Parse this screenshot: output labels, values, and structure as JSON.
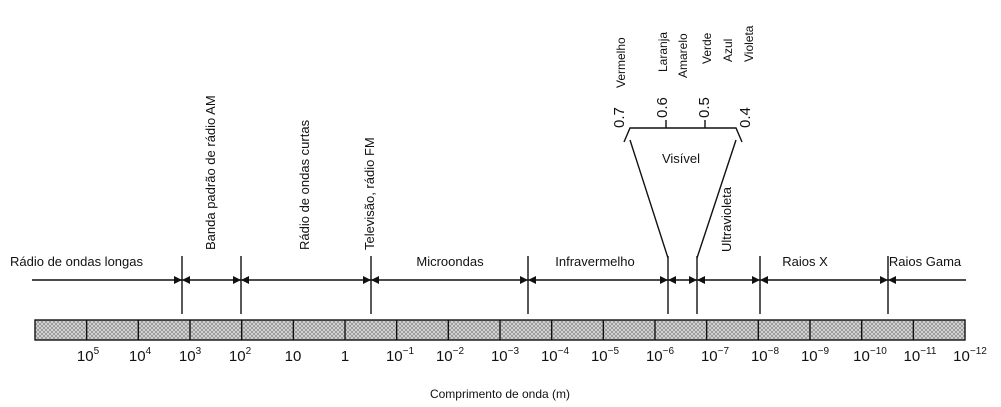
{
  "regions": [
    "Rádio de ondas longas",
    "Microondas",
    "Infravermelho",
    "Raios X",
    "Raios Gama"
  ],
  "rotated_regions": [
    "Banda padrão de rádio AM",
    "Rádio de ondas curtas",
    "Televisão, rádio FM",
    "Ultravioleta"
  ],
  "visible": {
    "label": "Visível",
    "wavelengths": [
      "0.7",
      "0.6",
      "0.5",
      "0.4"
    ],
    "colors": [
      "Vermelho",
      "Laranja",
      "Amarelo",
      "Verde",
      "Azul",
      "Violeta"
    ]
  },
  "scale": [
    {
      "base": "10",
      "exp": "5"
    },
    {
      "base": "10",
      "exp": "4"
    },
    {
      "base": "10",
      "exp": "3"
    },
    {
      "base": "10",
      "exp": "2"
    },
    {
      "base": "10"
    },
    {
      "base": "1"
    },
    {
      "base": "10",
      "exp": "−1"
    },
    {
      "base": "10",
      "exp": "−2"
    },
    {
      "base": "10",
      "exp": "−3"
    },
    {
      "base": "10",
      "exp": "−4"
    },
    {
      "base": "10",
      "exp": "−5"
    },
    {
      "base": "10",
      "exp": "−6"
    },
    {
      "base": "10",
      "exp": "−7"
    },
    {
      "base": "10",
      "exp": "−8"
    },
    {
      "base": "10",
      "exp": "−9"
    },
    {
      "base": "10",
      "exp": "−10"
    },
    {
      "base": "10",
      "exp": "−11"
    },
    {
      "base": "10",
      "exp": "−12"
    }
  ],
  "axis_label": "Comprimento de onda (m)"
}
